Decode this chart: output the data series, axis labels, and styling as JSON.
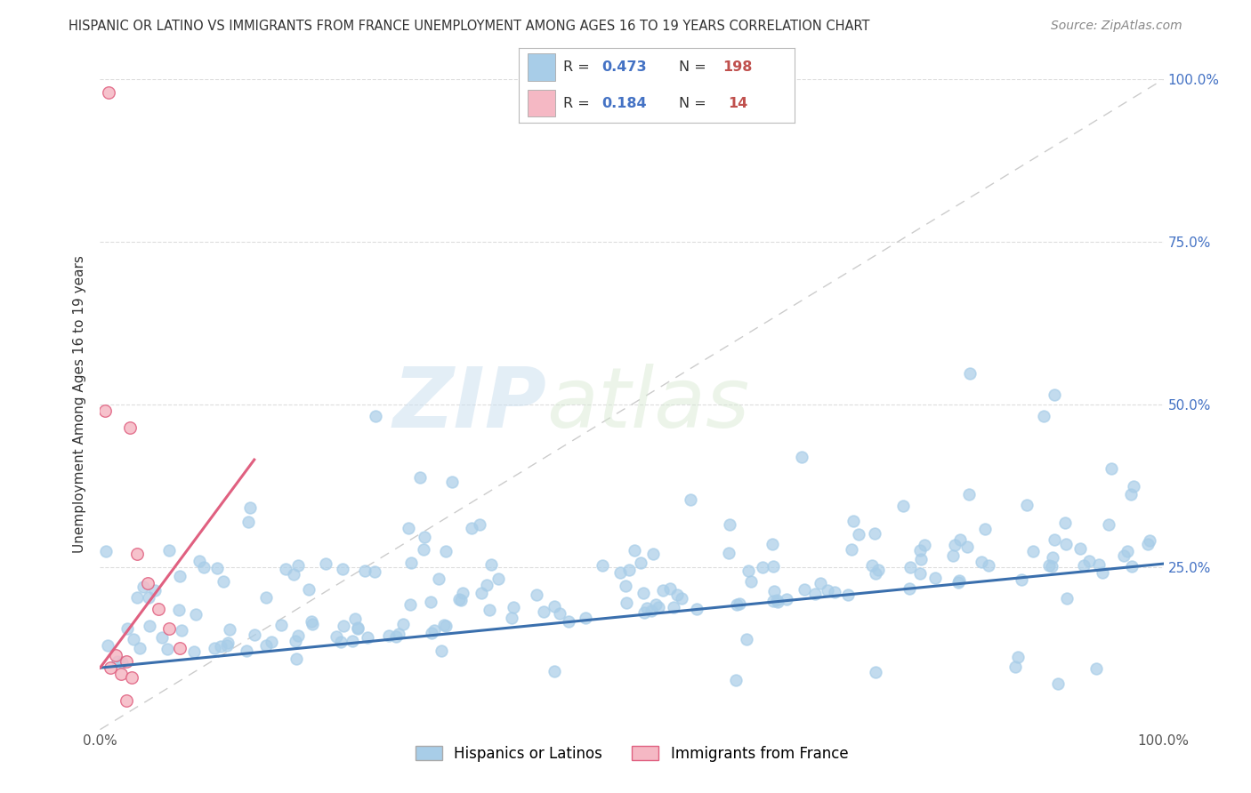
{
  "title": "HISPANIC OR LATINO VS IMMIGRANTS FROM FRANCE UNEMPLOYMENT AMONG AGES 16 TO 19 YEARS CORRELATION CHART",
  "source": "Source: ZipAtlas.com",
  "ylabel": "Unemployment Among Ages 16 to 19 years",
  "legend_label1": "Hispanics or Latinos",
  "legend_label2": "Immigrants from France",
  "R1": 0.473,
  "N1": 198,
  "R2": 0.184,
  "N2": 14,
  "color_blue": "#a8cde8",
  "color_pink": "#f5b8c4",
  "color_blue_line": "#3a6fad",
  "color_pink_line": "#e06080",
  "right_ytick_labels": [
    "100.0%",
    "75.0%",
    "50.0%",
    "25.0%"
  ],
  "right_ytick_values": [
    1.0,
    0.75,
    0.5,
    0.25
  ],
  "background_color": "#ffffff",
  "watermark_zip": "ZIP",
  "watermark_atlas": "atlas",
  "seed": 42,
  "xlim": [
    0.0,
    1.0
  ],
  "ylim": [
    0.0,
    1.0
  ],
  "legend_R_color": "#4472c4",
  "legend_N_color": "#c0504d"
}
